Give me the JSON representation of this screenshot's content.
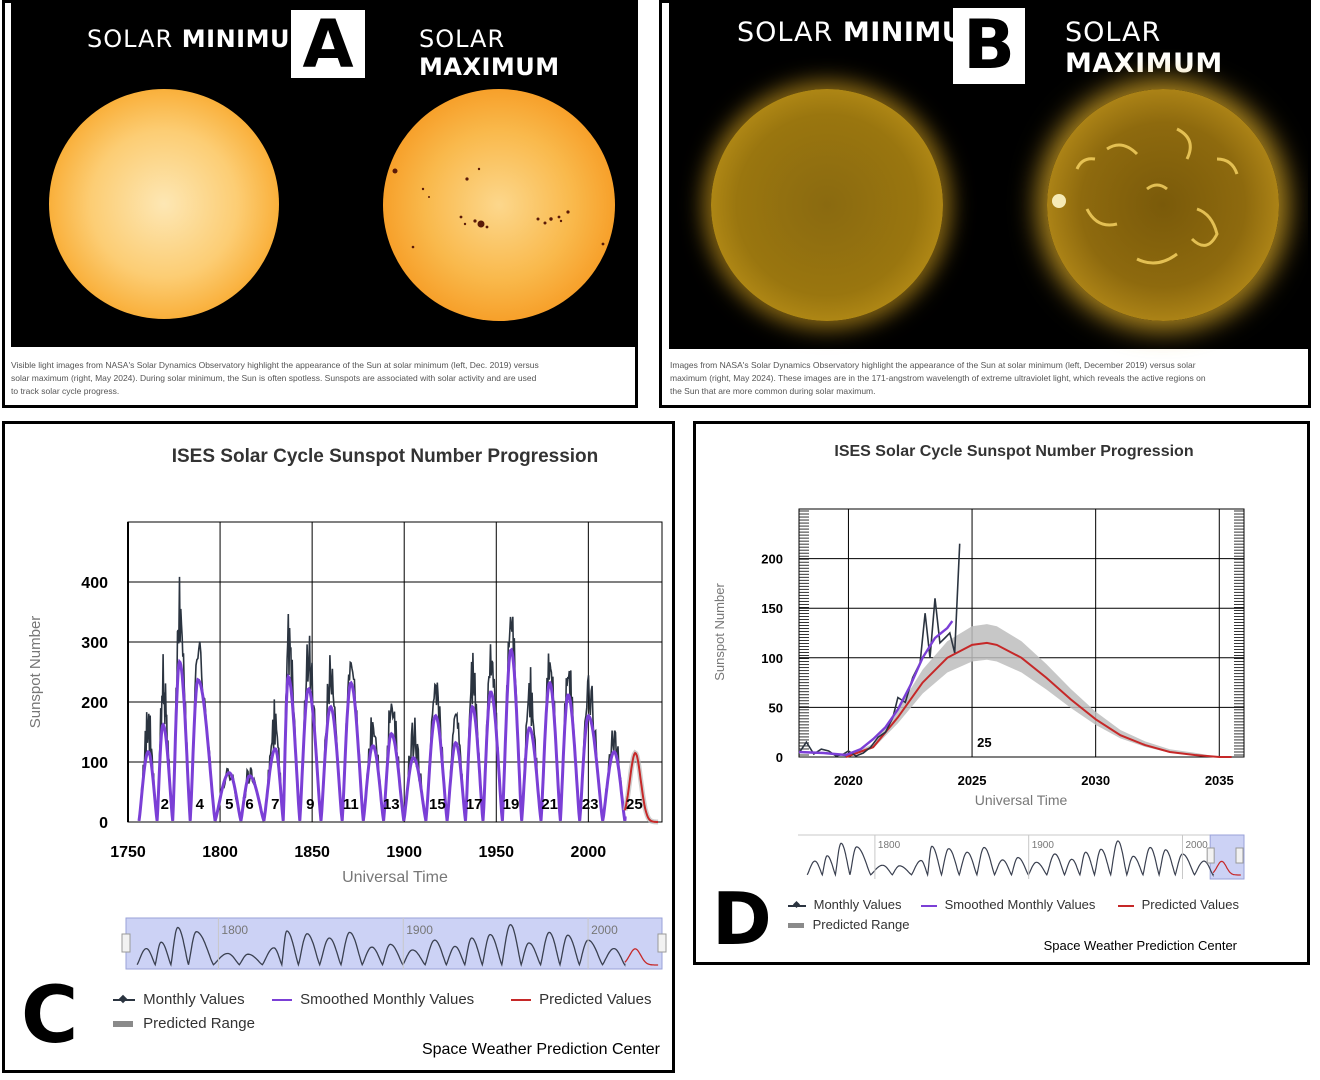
{
  "panel_a": {
    "label": "A",
    "min_label_light": "SOLAR ",
    "min_label_bold": "MINIMUM",
    "max_label_light": "SOLAR ",
    "max_label_bold": "MAXIMUM",
    "caption": "Visible light images from NASA's Solar Dynamics Observatory highlight the appearance of the Sun at solar minimum (left, Dec. 2019) versus solar maximum (right, May 2024). During solar minimum, the Sun is often spotless. Sunspots are associated with solar activity and are used to track solar cycle progress."
  },
  "panel_b": {
    "label": "B",
    "min_label_light": "SOLAR ",
    "min_label_bold": "MINIMUM",
    "max_label_light": "SOLAR ",
    "max_label_bold": "MAXIMUM",
    "caption": "Images from NASA's Solar Dynamics Observatory highlight the appearance of the Sun at solar minimum (left, December 2019) versus solar maximum (right, May 2024). These images are in the 171-angstrom wavelength of extreme ultraviolet light, which reveals the active regions on the Sun that are more common during solar maximum."
  },
  "panel_c": {
    "label": "C",
    "footer": "Space Weather Prediction Center",
    "legend": {
      "monthly": "Monthly Values",
      "smoothed": "Smoothed Monthly Values",
      "predicted": "Predicted Values",
      "range": "Predicted Range"
    },
    "navigator_ticks": [
      "1800",
      "1900",
      "2000"
    ]
  },
  "panel_d": {
    "label": "D",
    "footer": "Space Weather Prediction Center",
    "legend": {
      "monthly": "Monthly Values",
      "smoothed": "Smoothed Monthly Values",
      "predicted": "Predicted Values",
      "range": "Predicted Range"
    },
    "navigator_ticks": [
      "1800",
      "1900",
      "2000"
    ]
  },
  "colors": {
    "monthly": "#2b3440",
    "smoothed": "#7b3fd6",
    "predicted": "#c62828",
    "range": "#bdbdbd",
    "visible_sun": "#f7a21b",
    "euv_sun": "#b88a12"
  },
  "chart_data": [
    {
      "type": "line",
      "title": "ISES Solar Cycle Sunspot Number Progression",
      "xlabel": "Universal Time",
      "ylabel": "Sunspot Number",
      "xlim": [
        1750,
        2040
      ],
      "ylim": [
        0,
        500
      ],
      "x_ticks": [
        1750,
        1800,
        1850,
        1900,
        1950,
        2000
      ],
      "y_ticks": [
        0,
        100,
        200,
        300,
        400
      ],
      "grid": true,
      "legend_position": "bottom",
      "cycle_labels": [
        {
          "label": "2",
          "x": 1770
        },
        {
          "label": "4",
          "x": 1789
        },
        {
          "label": "5",
          "x": 1805
        },
        {
          "label": "6",
          "x": 1816
        },
        {
          "label": "7",
          "x": 1830
        },
        {
          "label": "9",
          "x": 1849
        },
        {
          "label": "11",
          "x": 1871
        },
        {
          "label": "13",
          "x": 1893
        },
        {
          "label": "15",
          "x": 1918
        },
        {
          "label": "17",
          "x": 1938
        },
        {
          "label": "19",
          "x": 1958
        },
        {
          "label": "21",
          "x": 1979
        },
        {
          "label": "23",
          "x": 2001
        },
        {
          "label": "25",
          "x": 2025
        }
      ],
      "cycle_peaks": [
        {
          "x": 1761,
          "monthly": 180,
          "smoothed": 115
        },
        {
          "x": 1769,
          "monthly": 260,
          "smoothed": 160
        },
        {
          "x": 1778,
          "monthly": 400,
          "smoothed": 265
        },
        {
          "x": 1788,
          "monthly": 295,
          "smoothed": 235
        },
        {
          "x": 1805,
          "monthly": 90,
          "smoothed": 80
        },
        {
          "x": 1816,
          "monthly": 80,
          "smoothed": 75
        },
        {
          "x": 1830,
          "monthly": 190,
          "smoothed": 120
        },
        {
          "x": 1837,
          "monthly": 345,
          "smoothed": 240
        },
        {
          "x": 1848,
          "monthly": 300,
          "smoothed": 220
        },
        {
          "x": 1860,
          "monthly": 270,
          "smoothed": 190
        },
        {
          "x": 1871,
          "monthly": 280,
          "smoothed": 230
        },
        {
          "x": 1883,
          "monthly": 170,
          "smoothed": 125
        },
        {
          "x": 1893,
          "monthly": 215,
          "smoothed": 145
        },
        {
          "x": 1905,
          "monthly": 160,
          "smoothed": 105
        },
        {
          "x": 1917,
          "monthly": 250,
          "smoothed": 175
        },
        {
          "x": 1928,
          "monthly": 210,
          "smoothed": 130
        },
        {
          "x": 1937,
          "monthly": 275,
          "smoothed": 190
        },
        {
          "x": 1947,
          "monthly": 300,
          "smoothed": 215
        },
        {
          "x": 1958,
          "monthly": 360,
          "smoothed": 285
        },
        {
          "x": 1968,
          "monthly": 250,
          "smoothed": 155
        },
        {
          "x": 1979,
          "monthly": 275,
          "smoothed": 230
        },
        {
          "x": 1989,
          "monthly": 260,
          "smoothed": 210
        },
        {
          "x": 2000,
          "monthly": 245,
          "smoothed": 175
        },
        {
          "x": 2014,
          "monthly": 150,
          "smoothed": 115
        },
        {
          "x": 2024,
          "monthly": 215,
          "smoothed": 160
        }
      ],
      "predicted_peak": {
        "x": 2025.5,
        "value": 115
      }
    },
    {
      "type": "line",
      "title": "ISES Solar Cycle Sunspot Number Progression",
      "xlabel": "Universal Time",
      "ylabel": "Sunspot Number",
      "xlim": [
        2018,
        2036
      ],
      "ylim": [
        0,
        250
      ],
      "x_ticks": [
        2020,
        2025,
        2030,
        2035
      ],
      "y_ticks": [
        0,
        50,
        100,
        150,
        200
      ],
      "grid": true,
      "legend_position": "bottom",
      "cycle_label": {
        "label": "25",
        "x": 2025.5,
        "y": 10
      },
      "monthly": [
        [
          2018.0,
          4
        ],
        [
          2018.3,
          15
        ],
        [
          2018.6,
          3
        ],
        [
          2018.9,
          8
        ],
        [
          2019.2,
          6
        ],
        [
          2019.5,
          1
        ],
        [
          2019.8,
          3
        ],
        [
          2020.0,
          6
        ],
        [
          2020.3,
          1
        ],
        [
          2020.6,
          4
        ],
        [
          2020.9,
          10
        ],
        [
          2021.2,
          20
        ],
        [
          2021.5,
          25
        ],
        [
          2021.8,
          40
        ],
        [
          2022.0,
          60
        ],
        [
          2022.3,
          55
        ],
        [
          2022.6,
          80
        ],
        [
          2022.9,
          95
        ],
        [
          2023.1,
          145
        ],
        [
          2023.3,
          100
        ],
        [
          2023.5,
          160
        ],
        [
          2023.7,
          115
        ],
        [
          2023.9,
          120
        ],
        [
          2024.1,
          125
        ],
        [
          2024.3,
          105
        ],
        [
          2024.5,
          215
        ]
      ],
      "smoothed": [
        [
          2018.0,
          5
        ],
        [
          2019.0,
          4
        ],
        [
          2019.9,
          2
        ],
        [
          2020.5,
          8
        ],
        [
          2021.0,
          18
        ],
        [
          2021.5,
          30
        ],
        [
          2022.0,
          48
        ],
        [
          2022.5,
          72
        ],
        [
          2023.0,
          100
        ],
        [
          2023.5,
          120
        ],
        [
          2024.0,
          130
        ],
        [
          2024.2,
          137
        ]
      ],
      "predicted": [
        [
          2019.9,
          0
        ],
        [
          2021,
          10
        ],
        [
          2022,
          40
        ],
        [
          2023,
          75
        ],
        [
          2024,
          100
        ],
        [
          2025,
          113
        ],
        [
          2025.6,
          115
        ],
        [
          2026,
          113
        ],
        [
          2027,
          100
        ],
        [
          2028,
          80
        ],
        [
          2029,
          58
        ],
        [
          2030,
          38
        ],
        [
          2031,
          22
        ],
        [
          2032,
          12
        ],
        [
          2033,
          5
        ],
        [
          2034,
          2
        ],
        [
          2035,
          0
        ],
        [
          2035.5,
          0
        ]
      ],
      "predicted_range": {
        "half_width_at_peak": 17
      },
      "visible_x_max_labeled": 2035
    }
  ]
}
